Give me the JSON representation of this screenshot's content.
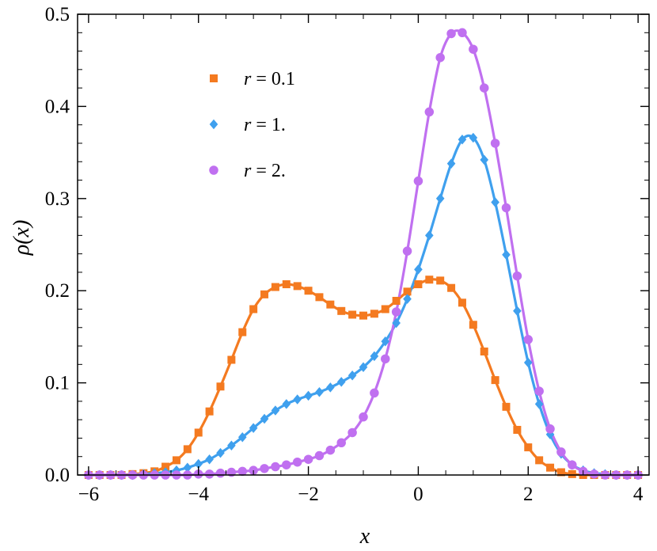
{
  "chart_data": {
    "type": "line",
    "xlabel": "x",
    "ylabel": "ρ(x)",
    "xlim": [
      -6.2,
      4.2
    ],
    "ylim": [
      0,
      0.5
    ],
    "xticks": [
      -6,
      -4,
      -2,
      0,
      2,
      4
    ],
    "xtick_labels": [
      "−6",
      "−4",
      "−2",
      "0",
      "2",
      "4"
    ],
    "yticks": [
      0,
      0.1,
      0.2,
      0.3,
      0.4,
      0.5
    ],
    "ytick_labels": [
      "0.0",
      "0.1",
      "0.2",
      "0.3",
      "0.4",
      "0.5"
    ],
    "grid": false,
    "frame": "box with inward ticks on all sides",
    "legend_placement": "top-left",
    "series": [
      {
        "name": "r = 0.1",
        "legend_var": "r",
        "legend_value": "= 0.1",
        "color": "#f47a20",
        "marker": "square",
        "x": [
          -6.0,
          -5.8,
          -5.6,
          -5.4,
          -5.2,
          -5.0,
          -4.8,
          -4.6,
          -4.4,
          -4.2,
          -4.0,
          -3.8,
          -3.6,
          -3.4,
          -3.2,
          -3.0,
          -2.8,
          -2.6,
          -2.4,
          -2.2,
          -2.0,
          -1.8,
          -1.6,
          -1.4,
          -1.2,
          -1.0,
          -0.8,
          -0.6,
          -0.4,
          -0.2,
          0.0,
          0.2,
          0.4,
          0.6,
          0.8,
          1.0,
          1.2,
          1.4,
          1.6,
          1.8,
          2.0,
          2.2,
          2.4,
          2.6,
          2.8,
          3.0,
          3.2,
          3.4,
          3.6,
          3.8,
          4.0
        ],
        "y": [
          0.0,
          0.0,
          0.0,
          0.0,
          0.001,
          0.002,
          0.004,
          0.009,
          0.016,
          0.028,
          0.046,
          0.069,
          0.096,
          0.125,
          0.155,
          0.18,
          0.196,
          0.204,
          0.207,
          0.205,
          0.2,
          0.193,
          0.185,
          0.178,
          0.174,
          0.173,
          0.175,
          0.18,
          0.189,
          0.199,
          0.207,
          0.212,
          0.211,
          0.203,
          0.187,
          0.163,
          0.134,
          0.103,
          0.074,
          0.049,
          0.03,
          0.016,
          0.008,
          0.003,
          0.001,
          0.0,
          0.0,
          0.0,
          0.0,
          0.0,
          0.0
        ]
      },
      {
        "name": "r = 1.",
        "legend_var": "r",
        "legend_value": "= 1.",
        "color": "#3fa0ee",
        "marker": "diamond",
        "x": [
          -6.0,
          -5.8,
          -5.6,
          -5.4,
          -5.2,
          -5.0,
          -4.8,
          -4.6,
          -4.4,
          -4.2,
          -4.0,
          -3.8,
          -3.6,
          -3.4,
          -3.2,
          -3.0,
          -2.8,
          -2.6,
          -2.4,
          -2.2,
          -2.0,
          -1.8,
          -1.6,
          -1.4,
          -1.2,
          -1.0,
          -0.8,
          -0.6,
          -0.4,
          -0.2,
          0.0,
          0.2,
          0.4,
          0.6,
          0.8,
          1.0,
          1.2,
          1.4,
          1.6,
          1.8,
          2.0,
          2.2,
          2.4,
          2.6,
          2.8,
          3.0,
          3.2,
          3.4,
          3.6,
          3.8,
          4.0
        ],
        "y": [
          0.0,
          0.0,
          0.0,
          0.0,
          0.0,
          0.001,
          0.002,
          0.003,
          0.005,
          0.008,
          0.012,
          0.017,
          0.024,
          0.032,
          0.041,
          0.051,
          0.061,
          0.07,
          0.077,
          0.082,
          0.086,
          0.09,
          0.095,
          0.101,
          0.108,
          0.117,
          0.129,
          0.145,
          0.165,
          0.191,
          0.223,
          0.26,
          0.3,
          0.338,
          0.364,
          0.366,
          0.342,
          0.296,
          0.239,
          0.178,
          0.122,
          0.077,
          0.044,
          0.023,
          0.011,
          0.005,
          0.002,
          0.001,
          0.0,
          0.0,
          0.0
        ]
      },
      {
        "name": "r = 2.",
        "legend_var": "r",
        "legend_value": "= 2.",
        "color": "#c070f0",
        "marker": "circle",
        "x": [
          -6.0,
          -5.8,
          -5.6,
          -5.4,
          -5.2,
          -5.0,
          -4.8,
          -4.6,
          -4.4,
          -4.2,
          -4.0,
          -3.8,
          -3.6,
          -3.4,
          -3.2,
          -3.0,
          -2.8,
          -2.6,
          -2.4,
          -2.2,
          -2.0,
          -1.8,
          -1.6,
          -1.4,
          -1.2,
          -1.0,
          -0.8,
          -0.6,
          -0.4,
          -0.2,
          0.0,
          0.2,
          0.4,
          0.6,
          0.8,
          1.0,
          1.2,
          1.4,
          1.6,
          1.8,
          2.0,
          2.2,
          2.4,
          2.6,
          2.8,
          3.0,
          3.2,
          3.4,
          3.6,
          3.8,
          4.0
        ],
        "y": [
          0.0,
          0.0,
          0.0,
          0.0,
          0.0,
          0.0,
          0.0,
          0.0,
          0.0,
          0.0,
          0.001,
          0.001,
          0.002,
          0.003,
          0.004,
          0.005,
          0.007,
          0.009,
          0.011,
          0.014,
          0.017,
          0.021,
          0.027,
          0.035,
          0.046,
          0.063,
          0.089,
          0.126,
          0.177,
          0.243,
          0.319,
          0.394,
          0.453,
          0.479,
          0.48,
          0.462,
          0.42,
          0.36,
          0.29,
          0.216,
          0.147,
          0.091,
          0.05,
          0.025,
          0.011,
          0.004,
          0.001,
          0.0,
          0.0,
          0.0,
          0.0
        ]
      }
    ]
  }
}
